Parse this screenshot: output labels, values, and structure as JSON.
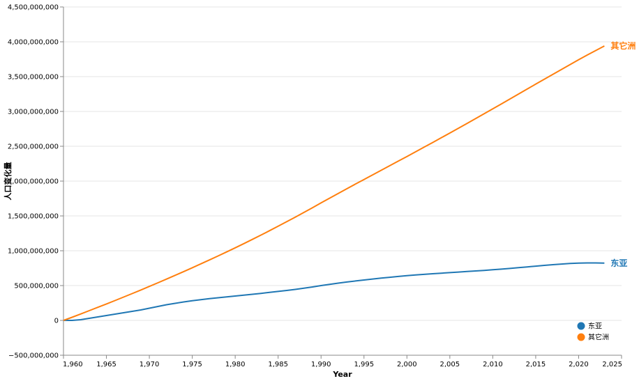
{
  "chart_data": {
    "type": "line",
    "title": "",
    "xlabel": "Year",
    "ylabel": "人口变化量",
    "xlim": [
      1960,
      2025
    ],
    "ylim": [
      -500000000,
      4500000000
    ],
    "grid": true,
    "legend_position": "bottom-right",
    "x_ticks": [
      "1,960",
      "1,965",
      "1,970",
      "1,975",
      "1,980",
      "1,985",
      "1,990",
      "1,995",
      "2,000",
      "2,005",
      "2,010",
      "2,015",
      "2,020",
      "2,025"
    ],
    "y_ticks": [
      "−500,000,000",
      "0",
      "500,000,000",
      "1,000,000,000",
      "1,500,000,000",
      "2,000,000,000",
      "2,500,000,000",
      "3,000,000,000",
      "3,500,000,000",
      "4,000,000,000",
      "4,500,000,000"
    ],
    "x": [
      1960,
      1961,
      1962,
      1963,
      1964,
      1965,
      1966,
      1967,
      1968,
      1969,
      1970,
      1971,
      1972,
      1973,
      1974,
      1975,
      1976,
      1977,
      1978,
      1979,
      1980,
      1981,
      1982,
      1983,
      1984,
      1985,
      1986,
      1987,
      1988,
      1989,
      1990,
      1991,
      1992,
      1993,
      1994,
      1995,
      1996,
      1997,
      1998,
      1999,
      2000,
      2001,
      2002,
      2003,
      2004,
      2005,
      2006,
      2007,
      2008,
      2009,
      2010,
      2011,
      2012,
      2013,
      2014,
      2015,
      2016,
      2017,
      2018,
      2019,
      2020,
      2021,
      2022,
      2023
    ],
    "series": [
      {
        "name": "东亚",
        "color": "#1f77b4",
        "values": [
          0,
          0,
          10000000,
          30000000,
          50000000,
          70000000,
          90000000,
          110000000,
          130000000,
          150000000,
          175000000,
          200000000,
          225000000,
          245000000,
          265000000,
          283000000,
          298000000,
          312000000,
          325000000,
          337000000,
          350000000,
          362000000,
          375000000,
          388000000,
          402000000,
          416000000,
          430000000,
          445000000,
          462000000,
          480000000,
          500000000,
          518000000,
          535000000,
          551000000,
          566000000,
          580000000,
          594000000,
          607000000,
          619000000,
          631000000,
          642000000,
          652000000,
          661000000,
          670000000,
          678000000,
          686000000,
          694000000,
          702000000,
          710000000,
          718000000,
          727000000,
          736000000,
          746000000,
          757000000,
          768000000,
          779000000,
          790000000,
          800000000,
          809000000,
          817000000,
          822000000,
          825000000,
          825000000,
          822000000
        ]
      },
      {
        "name": "其它洲",
        "color": "#ff7f0e",
        "values": [
          0,
          45000000,
          92000000,
          140000000,
          188000000,
          236000000,
          285000000,
          335000000,
          385000000,
          436000000,
          488000000,
          540000000,
          593000000,
          647000000,
          701000000,
          756000000,
          812000000,
          868000000,
          925000000,
          983000000,
          1042000000,
          1102000000,
          1163000000,
          1225000000,
          1288000000,
          1352000000,
          1417000000,
          1483000000,
          1550000000,
          1618000000,
          1687000000,
          1755000000,
          1823000000,
          1890000000,
          1957000000,
          2023000000,
          2089000000,
          2155000000,
          2221000000,
          2287000000,
          2353000000,
          2420000000,
          2487000000,
          2554000000,
          2622000000,
          2690000000,
          2759000000,
          2828000000,
          2898000000,
          2968000000,
          3038000000,
          3108000000,
          3179000000,
          3250000000,
          3321000000,
          3392000000,
          3463000000,
          3533000000,
          3603000000,
          3673000000,
          3743000000,
          3810000000,
          3875000000,
          3940000000
        ]
      }
    ]
  }
}
